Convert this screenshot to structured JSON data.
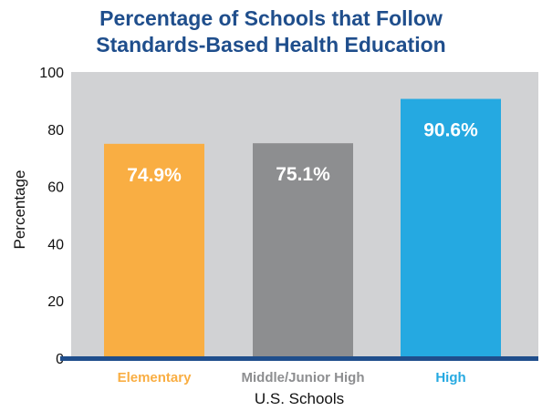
{
  "chart_data": {
    "type": "bar",
    "title_lines": [
      "Percentage of Schools that Follow",
      "Standards-Based Health Education"
    ],
    "xlabel": "U.S. Schools",
    "ylabel": "Percentage",
    "ylim": [
      0,
      100
    ],
    "yticks": [
      "0",
      "20",
      "40",
      "60",
      "80",
      "100"
    ],
    "categories": [
      "Elementary",
      "Middle/Junior High",
      "High"
    ],
    "values": [
      74.9,
      75.1,
      90.6
    ],
    "data_labels": [
      "74.9%",
      "75.1%",
      "90.6%"
    ],
    "bar_colors": [
      "#f9ae43",
      "#8d8e90",
      "#25a9e1"
    ],
    "category_label_colors": [
      "#f9ae43",
      "#8d8e90",
      "#25a9e1"
    ],
    "plot_background": "#d1d2d4",
    "baseline_color": "#1f4e8c",
    "title_color": "#1f4e8c",
    "grid": false,
    "legend": "none"
  }
}
